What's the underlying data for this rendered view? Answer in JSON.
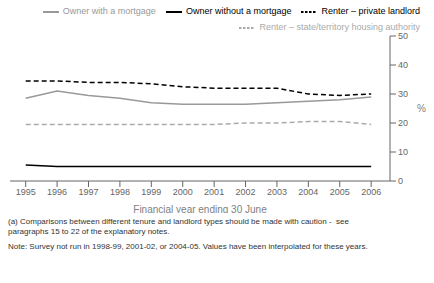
{
  "chart_data": {
    "type": "line",
    "x": [
      1995,
      1996,
      1997,
      1998,
      1999,
      2000,
      2001,
      2002,
      2003,
      2004,
      2005,
      2006
    ],
    "series": [
      {
        "name": "Owner without a mortgage",
        "color": "#000000",
        "line_style": "solid",
        "values": [
          5.5,
          5.0,
          5.0,
          5.0,
          5.0,
          5.0,
          5.0,
          5.0,
          5.0,
          5.0,
          5.0,
          5.0
        ]
      },
      {
        "name": "Owner with a mortgage",
        "color": "#999999",
        "line_style": "solid",
        "values": [
          28.5,
          31.0,
          29.5,
          28.5,
          27.0,
          26.5,
          26.5,
          26.5,
          27.0,
          27.5,
          28.0,
          29.0
        ]
      },
      {
        "name": "Renter – private landlord",
        "color": "#000000",
        "line_style": "dashed",
        "values": [
          34.5,
          34.5,
          34.0,
          34.0,
          33.5,
          32.5,
          32.0,
          32.0,
          32.0,
          30.0,
          29.5,
          30.0
        ]
      },
      {
        "name": "Renter – state/territory housing authority",
        "color": "#aaaaaa",
        "line_style": "dashed",
        "values": [
          19.5,
          19.5,
          19.5,
          19.5,
          19.5,
          19.5,
          19.5,
          20.0,
          20.0,
          20.5,
          20.5,
          19.5
        ]
      }
    ],
    "xlabel": "Financial year ending 30 June",
    "ylabel": "%",
    "xlim": [
      1994.5,
      2006.6
    ],
    "xticks": [
      1995,
      1996,
      1997,
      1998,
      1999,
      2000,
      2001,
      2002,
      2003,
      2004,
      2005,
      2006
    ],
    "ylim": [
      0,
      50
    ],
    "yticks": [
      0,
      10,
      20,
      30,
      40,
      50
    ],
    "grid": false,
    "legend": "upper right",
    "annotations": [
      "(a) Comparisons between different tenure and landlord types should be made with caution -  see",
      "paragraphs 15 to 22 of the explanatory notes.",
      "Note: Survey not run in 1998-99, 2001-02, or 2004-05. Values have been interpolated for these years."
    ]
  }
}
